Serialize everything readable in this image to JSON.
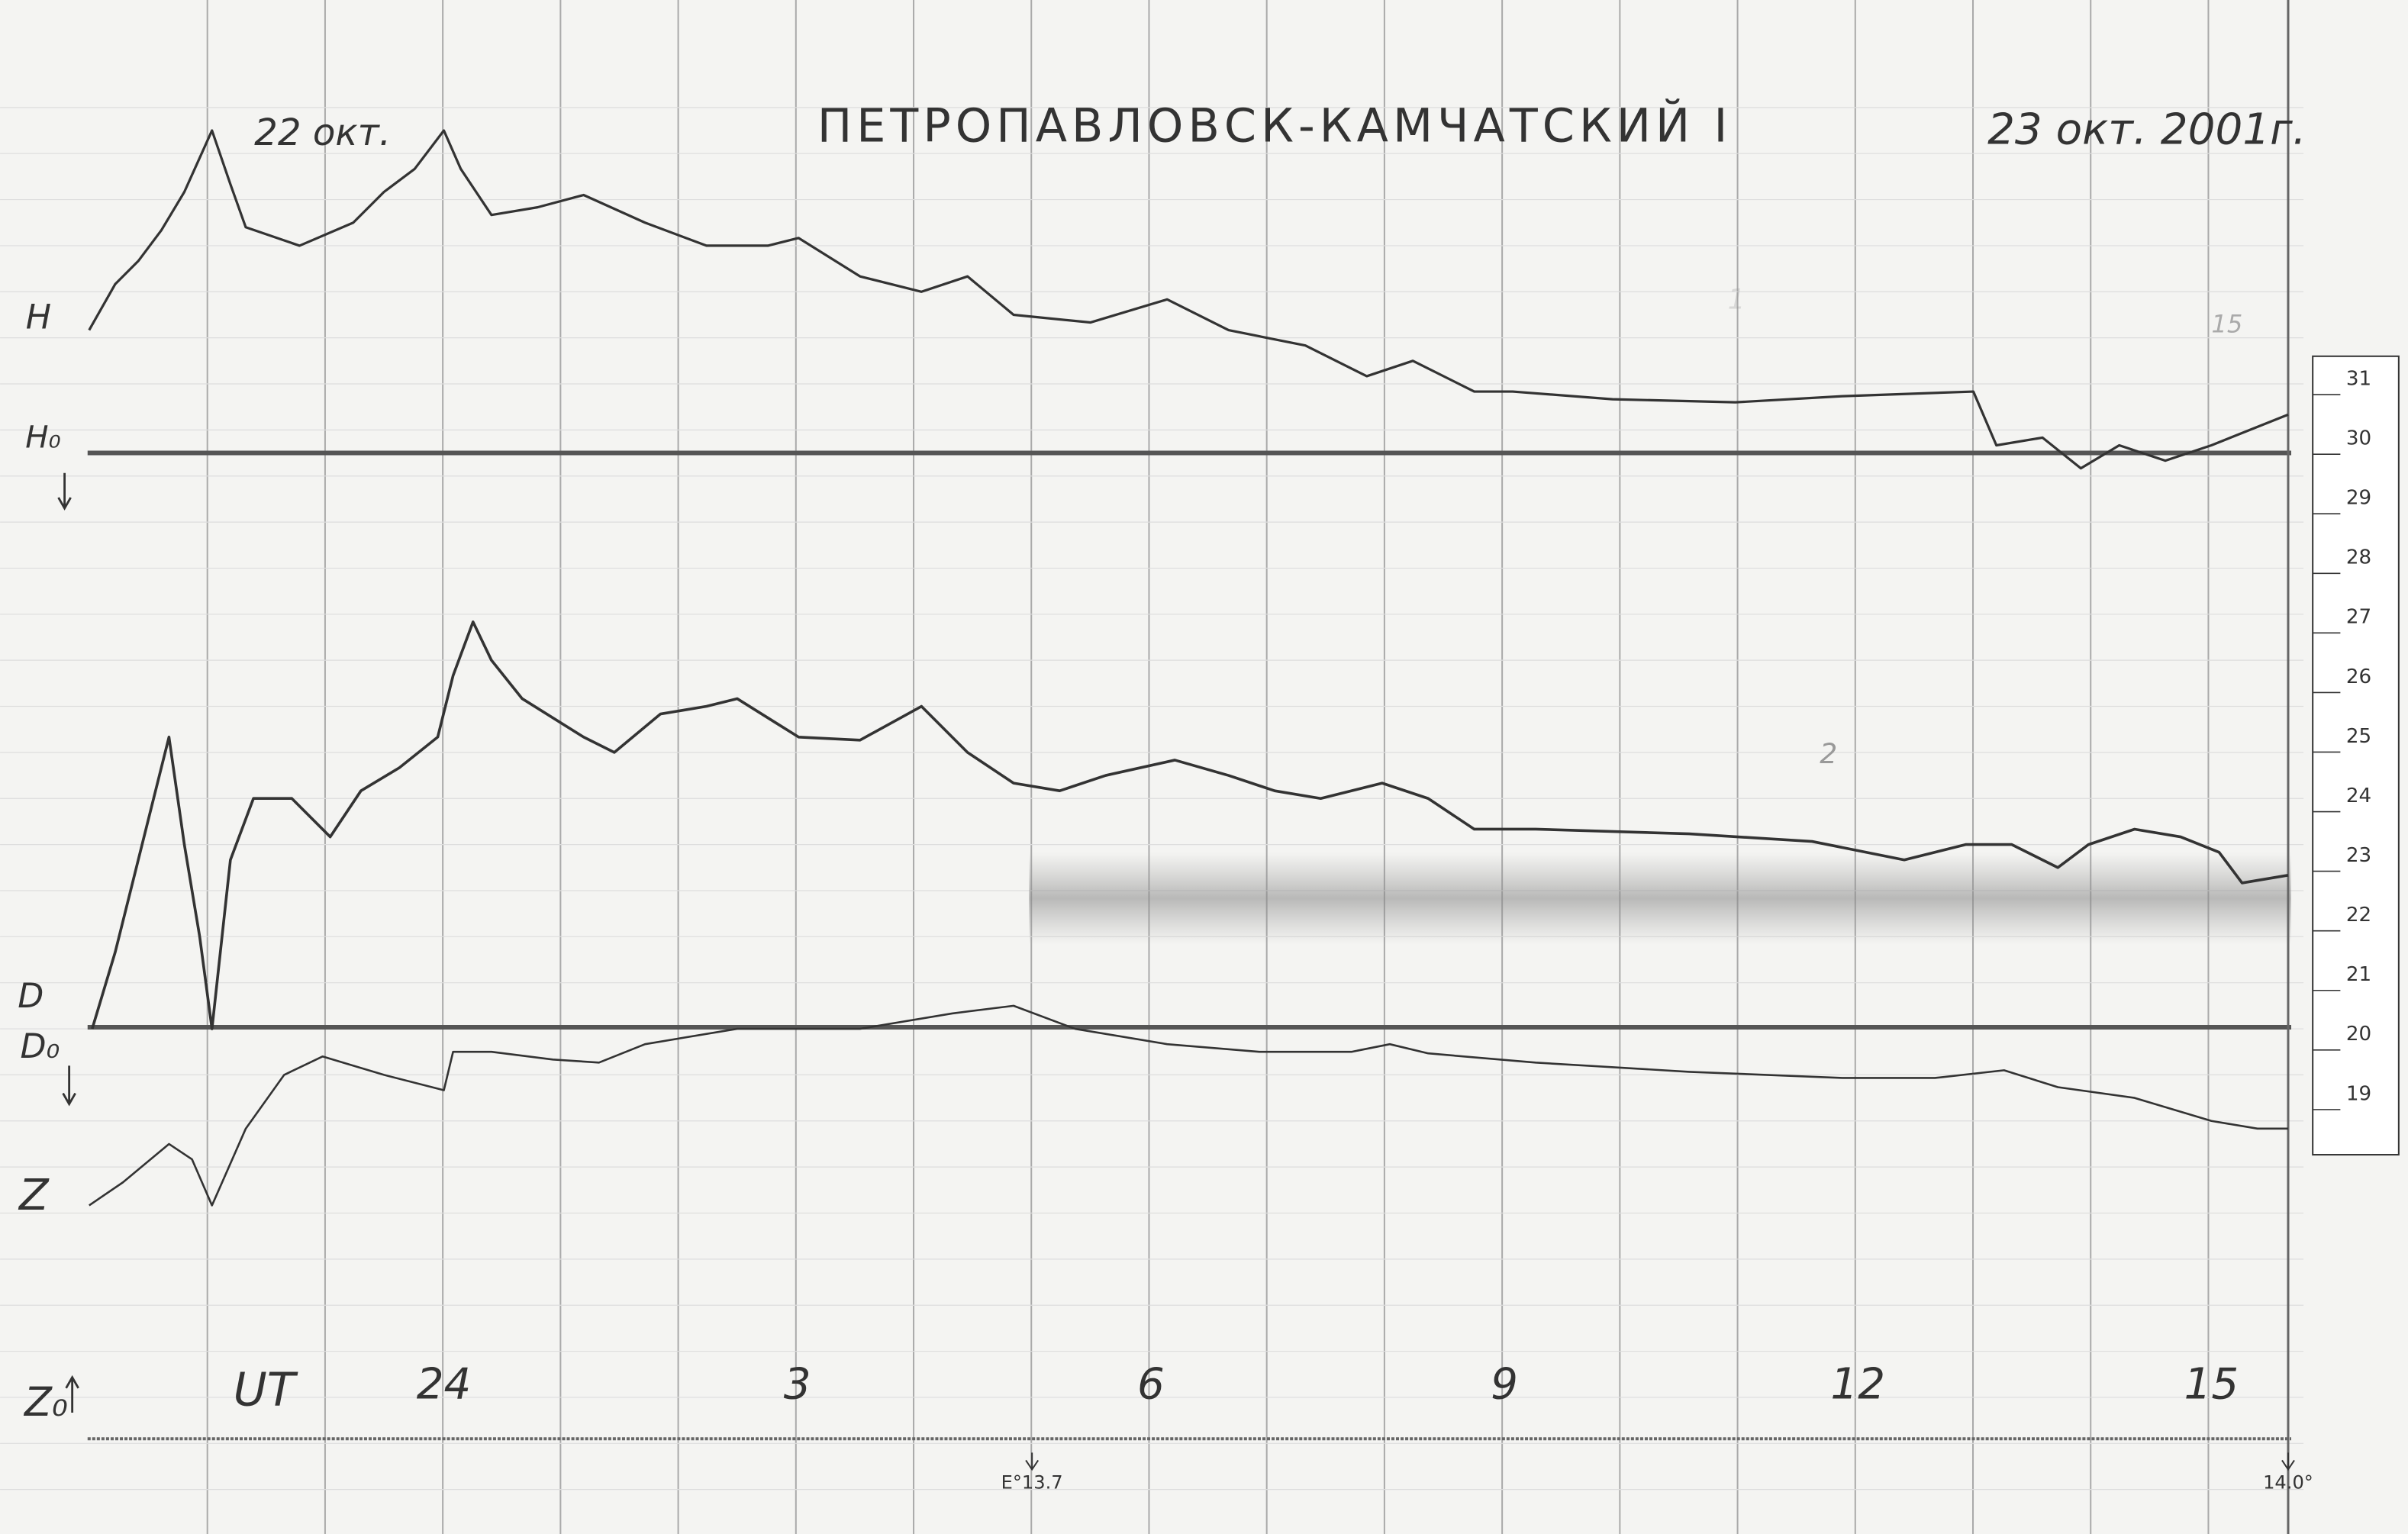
{
  "header": {
    "date_start": "22 окт.",
    "title": "ПЕТРОПАВЛОВСК-КАМЧАТСКИЙ I",
    "date_end": "23 окт. 2001г."
  },
  "channels": {
    "h": "H",
    "h0": "H₀",
    "d": "D",
    "d0": "D₀",
    "z": "Z",
    "z0": "Z₀"
  },
  "time_axis": {
    "label": "UT",
    "hours": [
      "24",
      "3",
      "6",
      "9",
      "12",
      "15"
    ]
  },
  "markers": [
    "E°13.7",
    "14.0°"
  ],
  "scale": [
    "31",
    "30",
    "29",
    "28",
    "27",
    "26",
    "25",
    "24",
    "23",
    "22",
    "21",
    "20",
    "19"
  ],
  "notes": [
    "1",
    "2",
    "15"
  ]
}
